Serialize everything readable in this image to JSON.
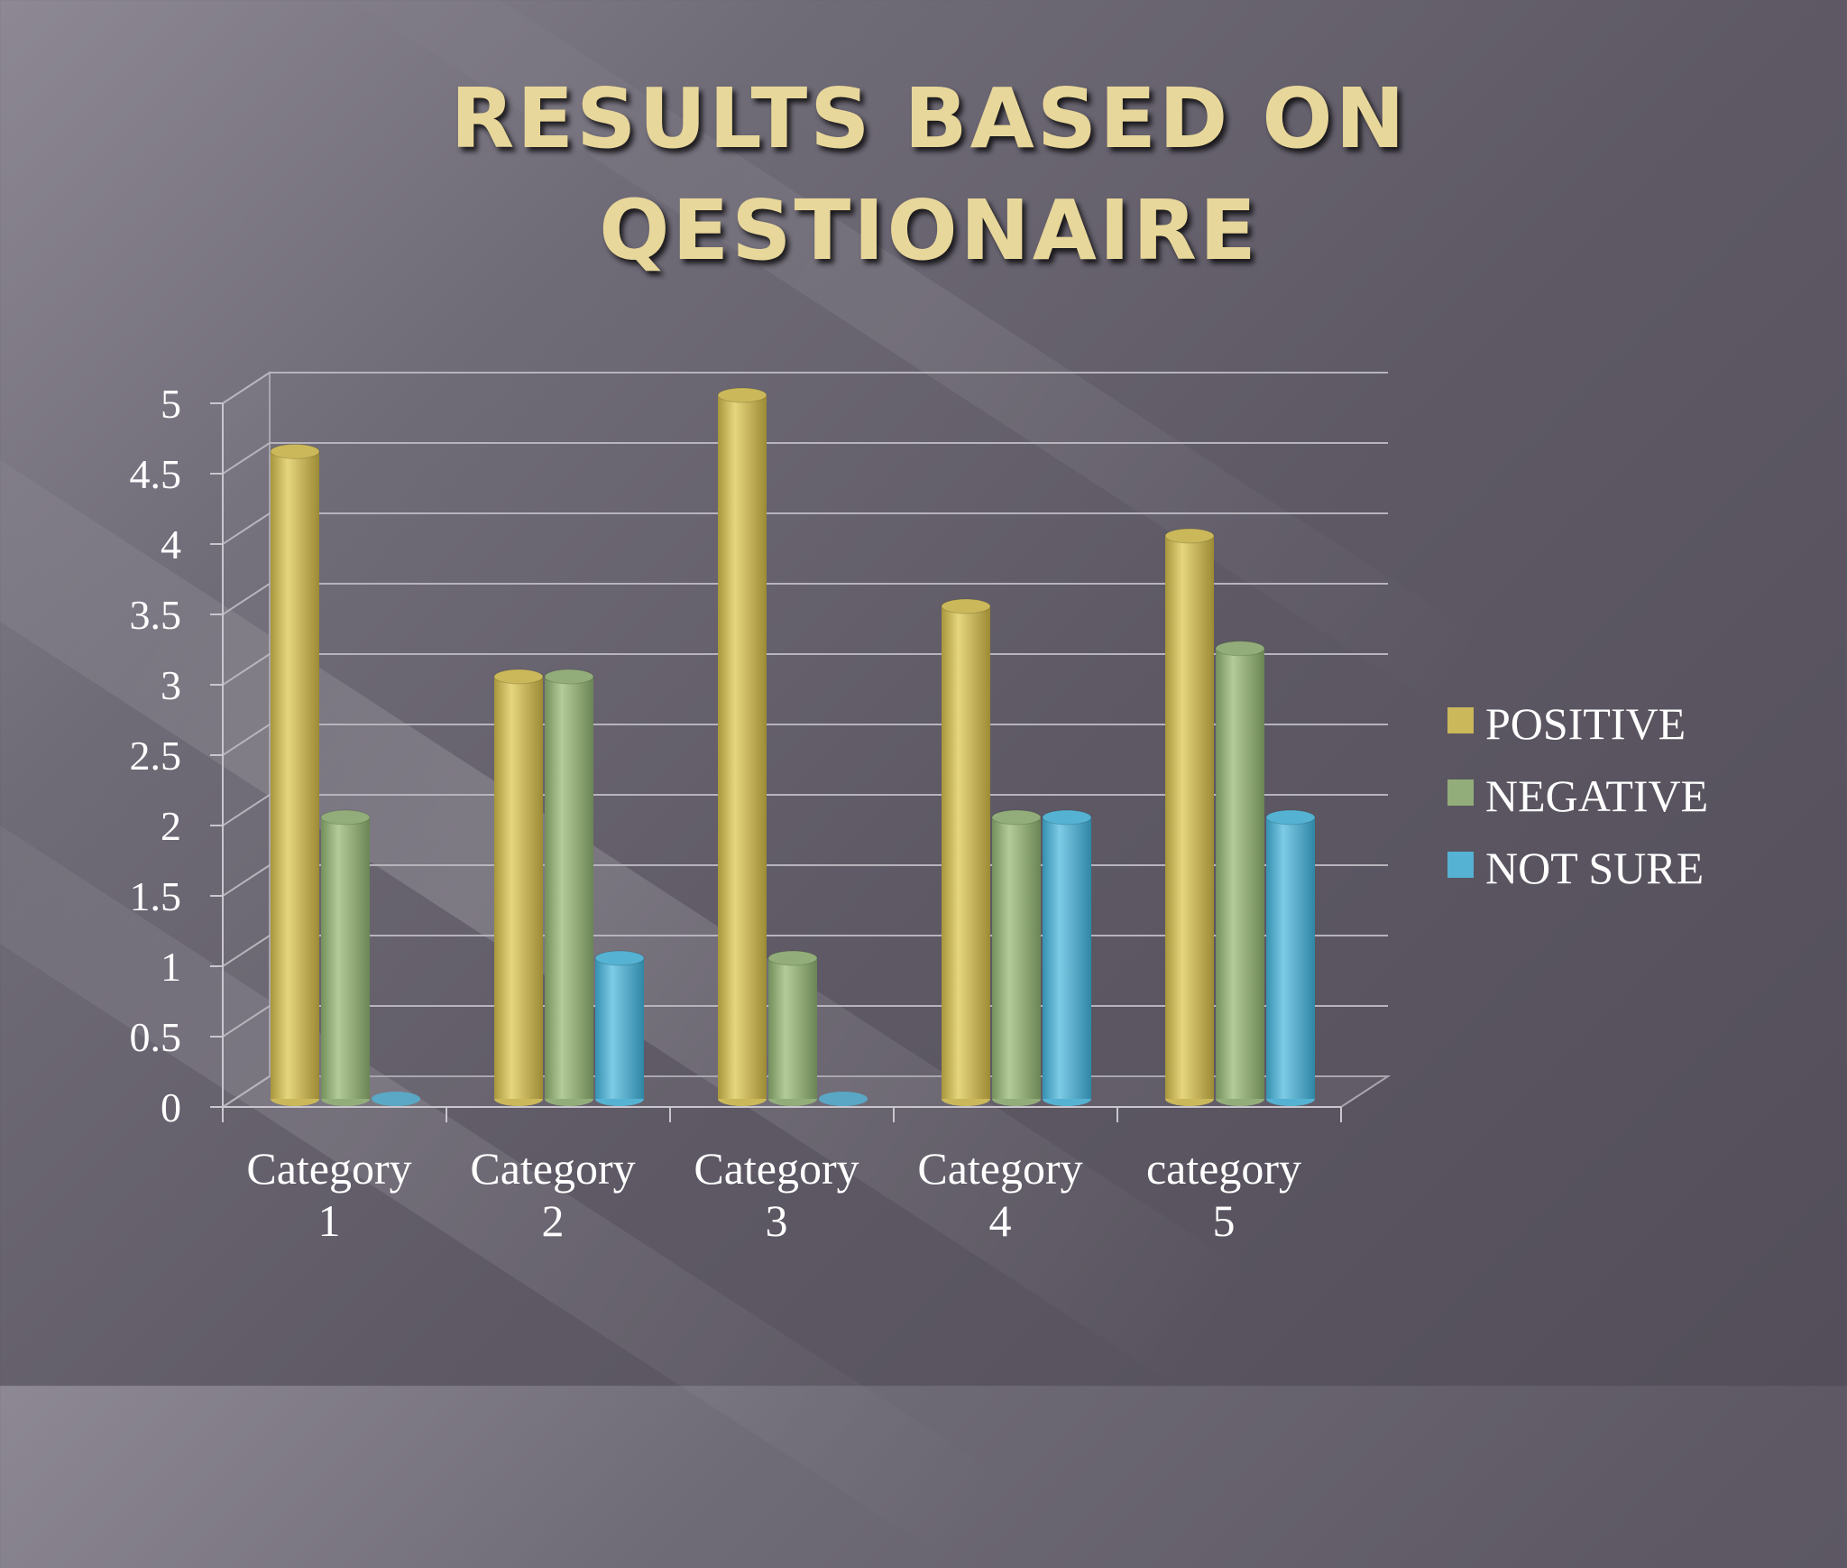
{
  "slide": {
    "title_line1": "RESULTS BASED ON",
    "title_line2": "QESTIONAIRE"
  },
  "chart_data": {
    "type": "bar",
    "style": "3d-cylinder",
    "categories": [
      [
        "Category",
        "1"
      ],
      [
        "Category",
        "2"
      ],
      [
        "Category",
        "3"
      ],
      [
        "Category",
        "4"
      ],
      [
        "category",
        "5"
      ]
    ],
    "series": [
      {
        "name": "POSITIVE",
        "color": "#cbb85a",
        "values": [
          4.6,
          3,
          5,
          3.5,
          4
        ]
      },
      {
        "name": "NEGATIVE",
        "color": "#93ad7a",
        "values": [
          2,
          3,
          1,
          2,
          3.2
        ]
      },
      {
        "name": "NOT SURE",
        "color": "#55b2d2",
        "values": [
          0,
          1,
          0,
          2,
          2
        ]
      }
    ],
    "yticks": [
      "0",
      "0.5",
      "1",
      "1.5",
      "2",
      "2.5",
      "3",
      "3.5",
      "4",
      "4.5",
      "5"
    ],
    "ylim": [
      0,
      5
    ],
    "grid": true,
    "legend": "right"
  }
}
